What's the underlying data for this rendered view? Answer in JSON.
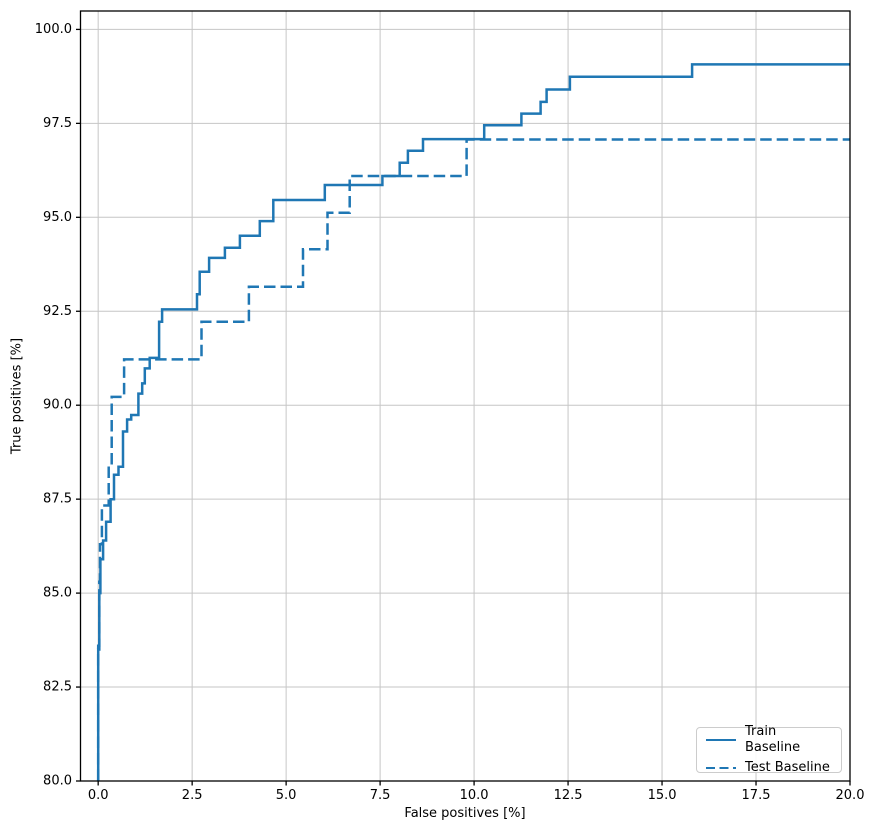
{
  "chart_data": {
    "type": "line",
    "subtype": "roc-step-curves",
    "title": "",
    "xlabel": "False positives [%]",
    "ylabel": "True positives [%]",
    "xlim": [
      -0.47,
      20.0
    ],
    "ylim": [
      80.0,
      100.49
    ],
    "x_tick_values": [
      0.0,
      2.5,
      5.0,
      7.5,
      10.0,
      12.5,
      15.0,
      17.5,
      20.0
    ],
    "y_tick_values": [
      80.0,
      82.5,
      85.0,
      87.5,
      90.0,
      92.5,
      95.0,
      97.5,
      100.0
    ],
    "x_tick_labels": [
      "0.0",
      "2.5",
      "5.0",
      "7.5",
      "10.0",
      "12.5",
      "15.0",
      "17.5",
      "20.0"
    ],
    "y_tick_labels": [
      "80.0",
      "82.5",
      "85.0",
      "87.5",
      "90.0",
      "92.5",
      "95.0",
      "97.5",
      "100.0"
    ],
    "grid": true,
    "legend_position": "lower right",
    "colors": {
      "line": "#1f77b4",
      "grid": "#c6c6c6",
      "spine": "#000000",
      "background": "#ffffff",
      "text": "#000000",
      "legend_border": "#cccccc"
    },
    "series": [
      {
        "name": "Train Baseline",
        "style": "solid",
        "color": "#1f77b4",
        "linewidth": 2.5,
        "points": [
          [
            0.0,
            80.0
          ],
          [
            0.0,
            83.5
          ],
          [
            0.03,
            83.5
          ],
          [
            0.03,
            85.0
          ],
          [
            0.06,
            85.0
          ],
          [
            0.06,
            85.9
          ],
          [
            0.13,
            85.9
          ],
          [
            0.13,
            86.4
          ],
          [
            0.21,
            86.4
          ],
          [
            0.21,
            86.9
          ],
          [
            0.33,
            86.9
          ],
          [
            0.33,
            87.5
          ],
          [
            0.42,
            87.5
          ],
          [
            0.42,
            88.15
          ],
          [
            0.54,
            88.15
          ],
          [
            0.54,
            88.36
          ],
          [
            0.66,
            88.36
          ],
          [
            0.66,
            89.3
          ],
          [
            0.77,
            89.3
          ],
          [
            0.77,
            89.62
          ],
          [
            0.88,
            89.62
          ],
          [
            0.88,
            89.74
          ],
          [
            1.07,
            89.74
          ],
          [
            1.07,
            90.31
          ],
          [
            1.17,
            90.31
          ],
          [
            1.17,
            90.58
          ],
          [
            1.24,
            90.58
          ],
          [
            1.24,
            90.98
          ],
          [
            1.37,
            90.98
          ],
          [
            1.37,
            91.26
          ],
          [
            1.62,
            91.26
          ],
          [
            1.62,
            92.22
          ],
          [
            1.7,
            92.22
          ],
          [
            1.7,
            92.55
          ],
          [
            2.63,
            92.55
          ],
          [
            2.63,
            92.95
          ],
          [
            2.7,
            92.95
          ],
          [
            2.7,
            93.55
          ],
          [
            2.95,
            93.55
          ],
          [
            2.95,
            93.92
          ],
          [
            3.37,
            93.92
          ],
          [
            3.37,
            94.19
          ],
          [
            3.77,
            94.19
          ],
          [
            3.77,
            94.51
          ],
          [
            4.3,
            94.51
          ],
          [
            4.3,
            94.9
          ],
          [
            4.66,
            94.9
          ],
          [
            4.66,
            95.46
          ],
          [
            6.03,
            95.46
          ],
          [
            6.03,
            95.86
          ],
          [
            7.56,
            95.86
          ],
          [
            7.56,
            96.1
          ],
          [
            8.02,
            96.1
          ],
          [
            8.02,
            96.45
          ],
          [
            8.24,
            96.45
          ],
          [
            8.24,
            96.77
          ],
          [
            8.64,
            96.77
          ],
          [
            8.64,
            97.08
          ],
          [
            10.27,
            97.08
          ],
          [
            10.27,
            97.45
          ],
          [
            11.26,
            97.45
          ],
          [
            11.26,
            97.76
          ],
          [
            11.77,
            97.76
          ],
          [
            11.77,
            98.07
          ],
          [
            11.93,
            98.07
          ],
          [
            11.93,
            98.4
          ],
          [
            12.55,
            98.4
          ],
          [
            12.55,
            98.74
          ],
          [
            15.8,
            98.74
          ],
          [
            15.8,
            99.07
          ],
          [
            20.0,
            99.07
          ]
        ]
      },
      {
        "name": "Test Baseline",
        "style": "dashed",
        "color": "#1f77b4",
        "linewidth": 2.5,
        "points": [
          [
            0.0,
            80.0
          ],
          [
            0.0,
            83.6
          ],
          [
            0.03,
            83.6
          ],
          [
            0.03,
            85.3
          ],
          [
            0.05,
            85.3
          ],
          [
            0.05,
            86.3
          ],
          [
            0.1,
            86.3
          ],
          [
            0.1,
            87.33
          ],
          [
            0.28,
            87.33
          ],
          [
            0.28,
            88.4
          ],
          [
            0.36,
            88.4
          ],
          [
            0.36,
            90.22
          ],
          [
            0.69,
            90.22
          ],
          [
            0.69,
            91.22
          ],
          [
            2.75,
            91.22
          ],
          [
            2.75,
            92.22
          ],
          [
            4.01,
            92.22
          ],
          [
            4.01,
            93.15
          ],
          [
            5.45,
            93.15
          ],
          [
            5.45,
            94.15
          ],
          [
            6.1,
            94.15
          ],
          [
            6.1,
            95.12
          ],
          [
            6.69,
            95.12
          ],
          [
            6.69,
            96.1
          ],
          [
            9.8,
            96.1
          ],
          [
            9.8,
            97.07
          ],
          [
            20.0,
            97.07
          ]
        ]
      }
    ]
  },
  "legend": {
    "items": [
      {
        "label": "Train Baseline",
        "line_style": "solid"
      },
      {
        "label": "Test Baseline",
        "line_style": "dashed"
      }
    ]
  }
}
